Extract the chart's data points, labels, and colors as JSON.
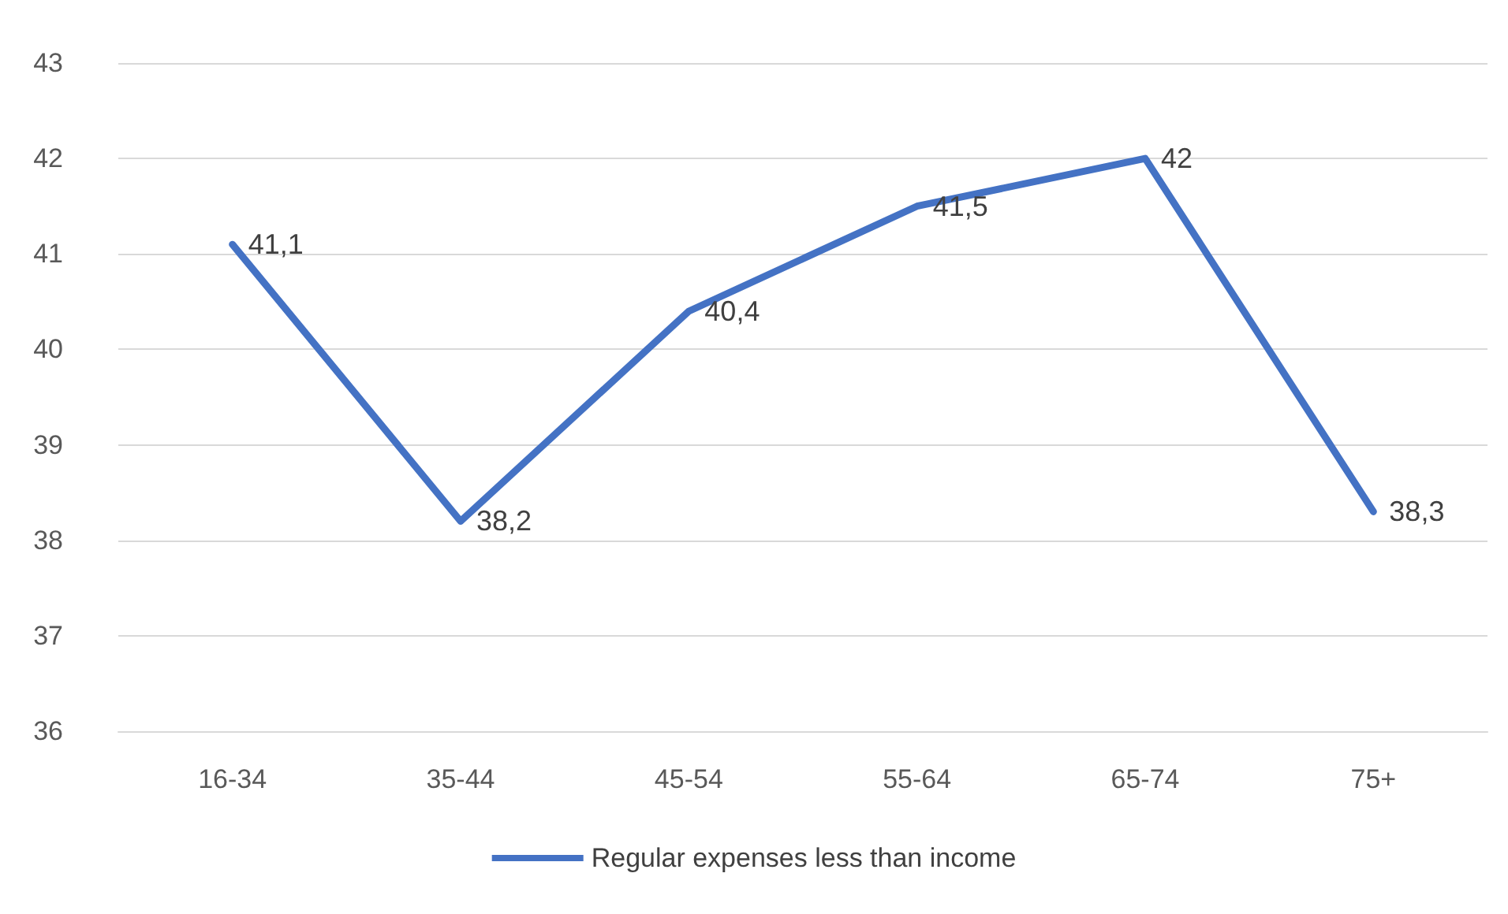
{
  "chart_data": {
    "type": "line",
    "categories": [
      "16-34",
      "35-44",
      "45-54",
      "55-64",
      "65-74",
      "75+"
    ],
    "series": [
      {
        "name": "Regular expenses less than income",
        "color": "#4472c4",
        "values": [
          41.1,
          38.2,
          40.4,
          41.5,
          42,
          38.3
        ],
        "value_labels": [
          "41,1",
          "38,2",
          "40,4",
          "41,5",
          "42",
          "38,3"
        ]
      }
    ],
    "ylim": [
      36,
      43
    ],
    "yticks": [
      36,
      37,
      38,
      39,
      40,
      41,
      42,
      43
    ],
    "grid": "y",
    "legend": "bottom",
    "marker": "none",
    "line_style": "solid"
  }
}
